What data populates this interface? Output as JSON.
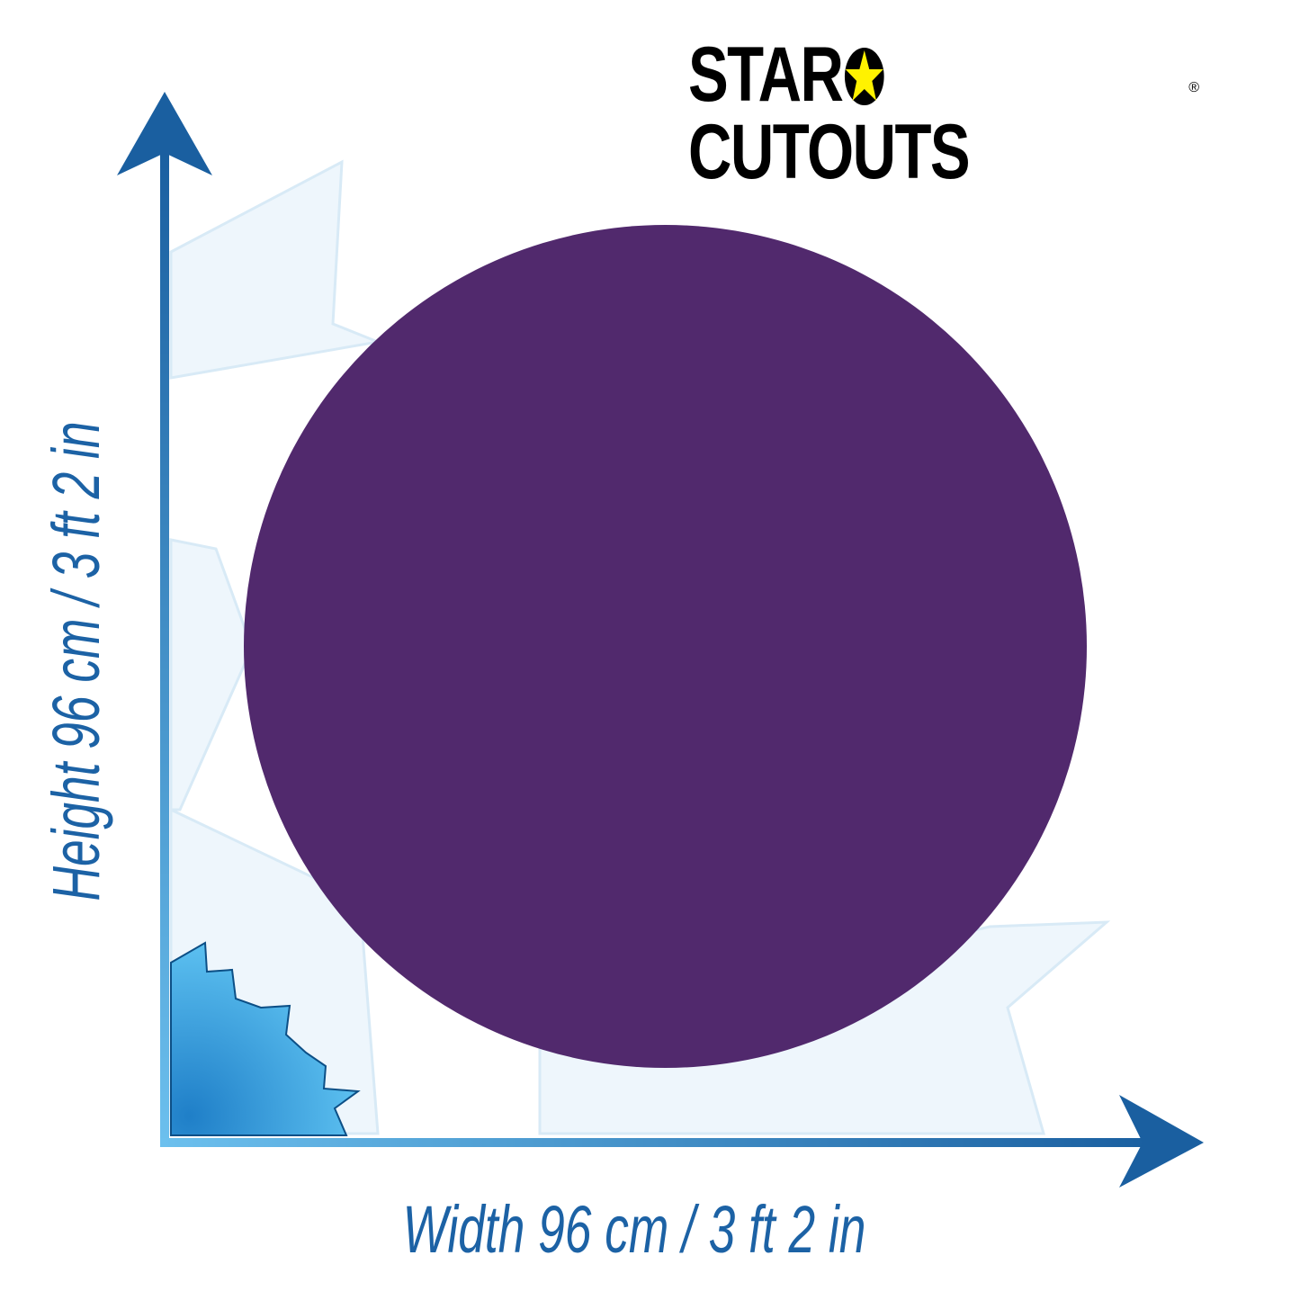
{
  "logo": {
    "text_left": "STAR",
    "text_right": "CUTOUTS",
    "registered": "®",
    "star_color": "#fff200"
  },
  "product": {
    "shape": "circle",
    "color": "#51296d"
  },
  "dimensions": {
    "width_label": "Width 96 cm / 3 ft 2 in",
    "height_label": "Height 96 cm / 3 ft  2 in"
  },
  "colors": {
    "axis": "#1c62a5",
    "axis_light": "#5db3e6"
  }
}
